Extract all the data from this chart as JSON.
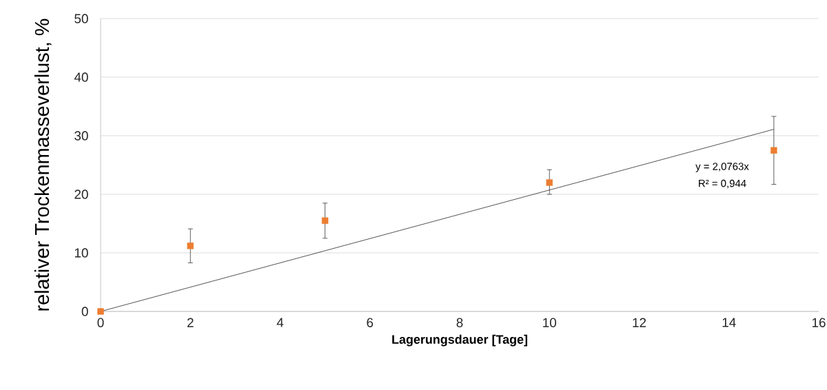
{
  "chart_data": {
    "type": "scatter",
    "xlabel": "Lagerungsdauer [Tage]",
    "ylabel": "relativer Trockenmasseverlust, %",
    "xlim": [
      0,
      16
    ],
    "xticks": [
      0,
      2,
      4,
      6,
      8,
      10,
      12,
      14,
      16
    ],
    "ylim": [
      0,
      50
    ],
    "yticks": [
      0,
      10,
      20,
      30,
      40,
      50
    ],
    "grid": "y",
    "annotations": [
      "y = 2,0763x",
      "R² = 0,944"
    ],
    "series": [
      {
        "color": "#ed7d31",
        "marker": "square",
        "x": [
          0,
          2,
          5,
          10,
          15
        ],
        "values": [
          0,
          11.2,
          15.5,
          22.0,
          27.5
        ],
        "errors": [
          null,
          [
            8.3,
            14.1
          ],
          [
            12.5,
            18.5
          ],
          [
            20.0,
            24.2
          ],
          [
            21.7,
            33.3
          ]
        ]
      },
      {
        "type": "line",
        "color": "#404040",
        "marker": "none",
        "x": [
          0,
          15
        ],
        "values": [
          0,
          31.1
        ]
      }
    ]
  }
}
